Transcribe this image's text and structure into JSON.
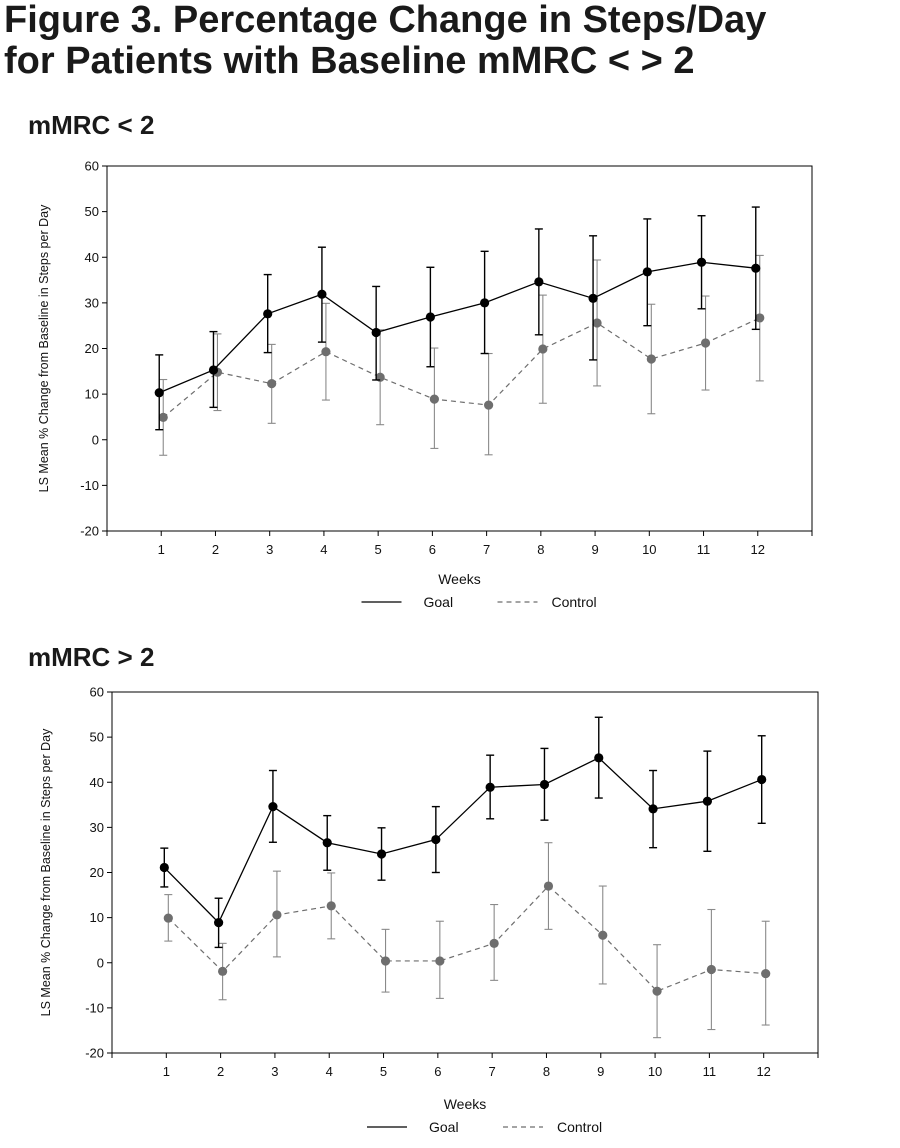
{
  "figure": {
    "title_line1": "Figure 3. Percentage Change in Steps/Day",
    "title_line2": "for Patients with Baseline mMRC < > 2"
  },
  "colors": {
    "goal": "#000000",
    "control": "#6e6e6e",
    "control_errorbar": "#8a8a8a"
  },
  "chart_data": [
    {
      "type": "line",
      "title": "mMRC < 2",
      "xlabel": "Weeks",
      "ylabel": "LS Mean % Change from Baseline in Steps per Day",
      "x": [
        1,
        2,
        3,
        4,
        5,
        6,
        7,
        8,
        9,
        10,
        11,
        12
      ],
      "xlim": [
        0,
        13
      ],
      "ylim": [
        -20,
        60
      ],
      "yticks": [
        -20,
        -10,
        0,
        10,
        20,
        30,
        40,
        50,
        60
      ],
      "legend_position": "bottom",
      "series": [
        {
          "name": "Goal",
          "style": "solid",
          "values": [
            10.3,
            15.3,
            27.6,
            31.9,
            23.5,
            26.9,
            30.0,
            34.6,
            31.0,
            36.8,
            38.9,
            37.6
          ],
          "lower": [
            2.2,
            7.1,
            19.1,
            21.4,
            13.1,
            16.0,
            18.9,
            23.0,
            17.5,
            25.0,
            28.7,
            24.2
          ],
          "upper": [
            18.6,
            23.7,
            36.2,
            42.2,
            33.6,
            37.8,
            41.3,
            46.2,
            44.7,
            48.4,
            49.1,
            51.0
          ]
        },
        {
          "name": "Control",
          "style": "dashed",
          "values": [
            4.9,
            14.8,
            12.3,
            19.3,
            13.7,
            8.9,
            7.6,
            19.9,
            25.6,
            17.7,
            21.2,
            26.7
          ],
          "lower": [
            -3.4,
            6.4,
            3.6,
            8.7,
            3.3,
            -1.9,
            -3.3,
            8.0,
            11.8,
            5.7,
            10.9,
            12.9
          ],
          "upper": [
            13.2,
            23.2,
            20.9,
            29.9,
            24.1,
            20.1,
            18.9,
            31.7,
            39.4,
            29.7,
            31.5,
            40.4
          ]
        }
      ]
    },
    {
      "type": "line",
      "title": "mMRC > 2",
      "xlabel": "Weeks",
      "ylabel": "LS Mean % Change from Baseline in Steps per Day",
      "x": [
        1,
        2,
        3,
        4,
        5,
        6,
        7,
        8,
        9,
        10,
        11,
        12
      ],
      "xlim": [
        0,
        13
      ],
      "ylim": [
        -20,
        60
      ],
      "yticks": [
        -20,
        -10,
        0,
        10,
        20,
        30,
        40,
        50,
        60
      ],
      "legend_position": "bottom",
      "series": [
        {
          "name": "Goal",
          "style": "solid",
          "values": [
            21.1,
            8.9,
            34.6,
            26.6,
            24.1,
            27.3,
            38.9,
            39.5,
            45.4,
            34.1,
            35.8,
            40.6
          ],
          "lower": [
            16.8,
            3.4,
            26.7,
            20.5,
            18.3,
            20.0,
            31.9,
            31.6,
            36.5,
            25.5,
            24.7,
            30.9
          ],
          "upper": [
            25.4,
            14.3,
            42.6,
            32.6,
            29.9,
            34.6,
            46.0,
            47.5,
            54.4,
            42.6,
            46.9,
            50.3
          ]
        },
        {
          "name": "Control",
          "style": "dashed",
          "values": [
            9.9,
            -1.9,
            10.6,
            12.6,
            0.4,
            0.4,
            4.3,
            17.0,
            6.1,
            -6.3,
            -1.5,
            -2.4
          ],
          "lower": [
            4.8,
            -8.2,
            1.3,
            5.3,
            -6.5,
            -7.9,
            -3.9,
            7.4,
            -4.7,
            -16.6,
            -14.8,
            -13.8
          ],
          "upper": [
            15.1,
            4.3,
            20.3,
            19.9,
            7.4,
            9.2,
            12.9,
            26.6,
            17.0,
            4.0,
            11.8,
            9.2
          ]
        }
      ]
    }
  ]
}
